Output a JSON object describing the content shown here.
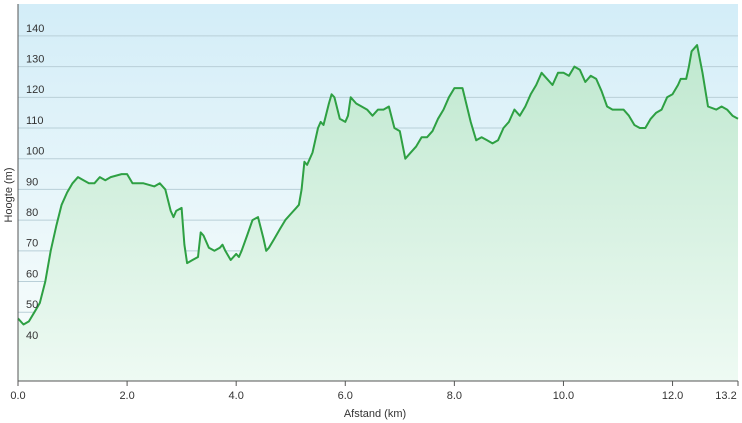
{
  "chart_data": {
    "type": "area",
    "x_label": "Afstand  (km)",
    "y_label": "Hoogte (m)",
    "x": [
      0.0,
      0.1,
      0.2,
      0.3,
      0.4,
      0.5,
      0.6,
      0.7,
      0.8,
      0.9,
      1.0,
      1.1,
      1.2,
      1.3,
      1.4,
      1.5,
      1.6,
      1.7,
      1.9,
      2.0,
      2.1,
      2.3,
      2.5,
      2.6,
      2.7,
      2.8,
      2.85,
      2.9,
      3.0,
      3.05,
      3.1,
      3.2,
      3.3,
      3.35,
      3.4,
      3.5,
      3.6,
      3.7,
      3.75,
      3.8,
      3.9,
      4.0,
      4.05,
      4.1,
      4.2,
      4.3,
      4.4,
      4.5,
      4.55,
      4.6,
      4.7,
      4.8,
      4.9,
      5.0,
      5.1,
      5.15,
      5.2,
      5.25,
      5.3,
      5.4,
      5.5,
      5.55,
      5.6,
      5.7,
      5.75,
      5.8,
      5.9,
      6.0,
      6.05,
      6.1,
      6.2,
      6.3,
      6.4,
      6.5,
      6.6,
      6.7,
      6.8,
      6.9,
      7.0,
      7.1,
      7.2,
      7.3,
      7.4,
      7.5,
      7.6,
      7.7,
      7.8,
      7.9,
      8.0,
      8.1,
      8.15,
      8.3,
      8.4,
      8.5,
      8.6,
      8.7,
      8.8,
      8.9,
      9.0,
      9.1,
      9.2,
      9.3,
      9.4,
      9.5,
      9.6,
      9.7,
      9.8,
      9.9,
      10.0,
      10.1,
      10.2,
      10.3,
      10.4,
      10.5,
      10.6,
      10.7,
      10.8,
      10.9,
      11.0,
      11.1,
      11.2,
      11.3,
      11.4,
      11.5,
      11.6,
      11.7,
      11.8,
      11.9,
      12.0,
      12.1,
      12.15,
      12.25,
      12.3,
      12.35,
      12.45,
      12.55,
      12.65,
      12.8,
      12.9,
      13.0,
      13.1,
      13.2
    ],
    "values": [
      48,
      46,
      47,
      50,
      53,
      60,
      70,
      78,
      85,
      89,
      92,
      94,
      93,
      92,
      92,
      94,
      93,
      94,
      95,
      95,
      92,
      92,
      91,
      92,
      90,
      83,
      81,
      83,
      84,
      72,
      66,
      67,
      68,
      76,
      75,
      71,
      70,
      71,
      72,
      70,
      67,
      69,
      68,
      70,
      75,
      80,
      81,
      74,
      70,
      71,
      74,
      77,
      80,
      82,
      84,
      85,
      90,
      99,
      98,
      102,
      110,
      112,
      111,
      118,
      121,
      120,
      113,
      112,
      114,
      120,
      118,
      117,
      116,
      114,
      116,
      116,
      117,
      110,
      109,
      100,
      102,
      104,
      107,
      107,
      109,
      113,
      116,
      120,
      123,
      123,
      123,
      112,
      106,
      107,
      106,
      105,
      106,
      110,
      112,
      116,
      114,
      117,
      121,
      124,
      128,
      126,
      124,
      128,
      128,
      127,
      130,
      129,
      125,
      127,
      126,
      122,
      117,
      116,
      116,
      116,
      114,
      111,
      110,
      110,
      113,
      115,
      116,
      120,
      121,
      124,
      126,
      126,
      130,
      135,
      137,
      128,
      117,
      116,
      117,
      116,
      114,
      113
    ],
    "color": "#2ea043",
    "xlim": [
      0,
      13.2
    ],
    "xticks": [
      {
        "value": 0,
        "label": "0.0"
      },
      {
        "value": 2,
        "label": "2.0"
      },
      {
        "value": 4,
        "label": "4.0"
      },
      {
        "value": 6,
        "label": "6.0"
      },
      {
        "value": 8,
        "label": "8.0"
      },
      {
        "value": 10,
        "label": "10.0"
      },
      {
        "value": 12,
        "label": "12.0"
      },
      13.2
    ],
    "ylim": [
      27.6,
      150.4
    ],
    "yticks": [
      40,
      50,
      60,
      70,
      80,
      90,
      100,
      110,
      120,
      130,
      140
    ],
    "grid": true
  }
}
